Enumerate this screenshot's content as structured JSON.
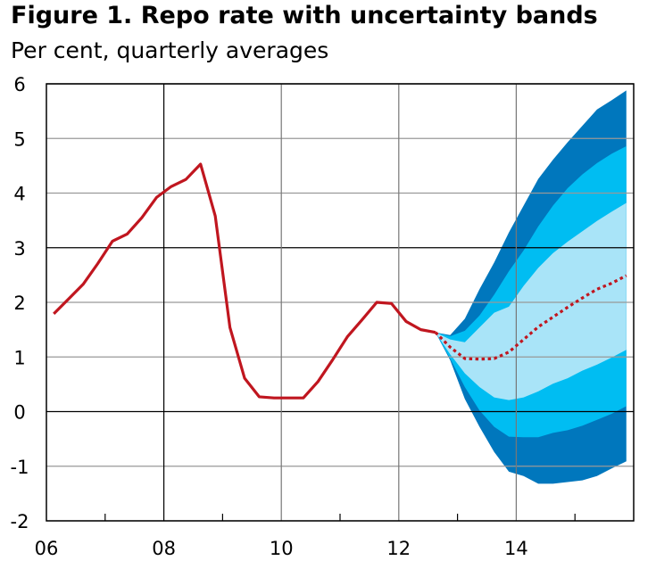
{
  "chart_data": {
    "type": "area",
    "title": "Figure 1. Repo rate with uncertainty bands",
    "subtitle": "Per cent, quarterly averages",
    "xlabel": "",
    "ylabel": "",
    "xlim": [
      2006,
      2016
    ],
    "ylim": [
      -2,
      6
    ],
    "y_ticks": [
      "6",
      "5",
      "4",
      "3",
      "2",
      "1",
      "0",
      "-1",
      "-2"
    ],
    "x_ticks": [
      "06",
      "08",
      "10",
      "12",
      "14"
    ],
    "grid": true,
    "colors": {
      "outcome": "#c0161f",
      "band_90": "#0077bd",
      "band_75": "#00bdf2",
      "band_50": "#a9e4f8",
      "grid": "#999999"
    },
    "outcome": {
      "x": [
        "2006Q1",
        "2006Q2",
        "2006Q3",
        "2006Q4",
        "2007Q1",
        "2007Q2",
        "2007Q3",
        "2007Q4",
        "2008Q1",
        "2008Q2",
        "2008Q3",
        "2008Q4",
        "2009Q1",
        "2009Q2",
        "2009Q3",
        "2009Q4",
        "2010Q1",
        "2010Q2",
        "2010Q3",
        "2010Q4",
        "2011Q1",
        "2011Q2",
        "2011Q3",
        "2011Q4",
        "2012Q1",
        "2012Q2",
        "2012Q3"
      ],
      "values": [
        1.79,
        2.06,
        2.33,
        2.71,
        3.12,
        3.25,
        3.55,
        3.92,
        4.12,
        4.25,
        4.53,
        3.58,
        1.54,
        0.61,
        0.27,
        0.25,
        0.25,
        0.25,
        0.55,
        0.95,
        1.37,
        1.68,
        2.0,
        1.98,
        1.65,
        1.5,
        1.45
      ]
    },
    "forecast": {
      "x": [
        "2012Q3",
        "2012Q4",
        "2013Q1",
        "2013Q2",
        "2013Q3",
        "2013Q4",
        "2014Q1",
        "2014Q2",
        "2014Q3",
        "2014Q4",
        "2015Q1",
        "2015Q2",
        "2015Q3",
        "2015Q4"
      ],
      "median": [
        1.45,
        1.18,
        0.97,
        0.96,
        0.97,
        1.09,
        1.32,
        1.55,
        1.73,
        1.91,
        2.08,
        2.24,
        2.35,
        2.49
      ],
      "upper_90": [
        1.45,
        1.4,
        1.7,
        2.24,
        2.73,
        3.28,
        3.77,
        4.26,
        4.61,
        4.93,
        5.23,
        5.53,
        5.7,
        5.88
      ],
      "upper_75": [
        1.45,
        1.38,
        1.48,
        1.76,
        2.14,
        2.57,
        2.95,
        3.39,
        3.77,
        4.09,
        4.34,
        4.55,
        4.72,
        4.86
      ],
      "upper_50": [
        1.45,
        1.32,
        1.27,
        1.54,
        1.81,
        1.92,
        2.3,
        2.63,
        2.9,
        3.11,
        3.3,
        3.49,
        3.66,
        3.82
      ],
      "lower_50": [
        1.45,
        1.05,
        0.7,
        0.45,
        0.26,
        0.21,
        0.26,
        0.37,
        0.51,
        0.61,
        0.75,
        0.86,
        0.99,
        1.13
      ],
      "lower_75": [
        1.45,
        0.97,
        0.45,
        0.02,
        -0.28,
        -0.46,
        -0.47,
        -0.47,
        -0.39,
        -0.34,
        -0.26,
        -0.15,
        -0.04,
        0.1
      ],
      "lower_90": [
        1.45,
        0.94,
        0.23,
        -0.28,
        -0.74,
        -1.1,
        -1.18,
        -1.32,
        -1.32,
        -1.29,
        -1.26,
        -1.18,
        -1.04,
        -0.91
      ]
    }
  }
}
